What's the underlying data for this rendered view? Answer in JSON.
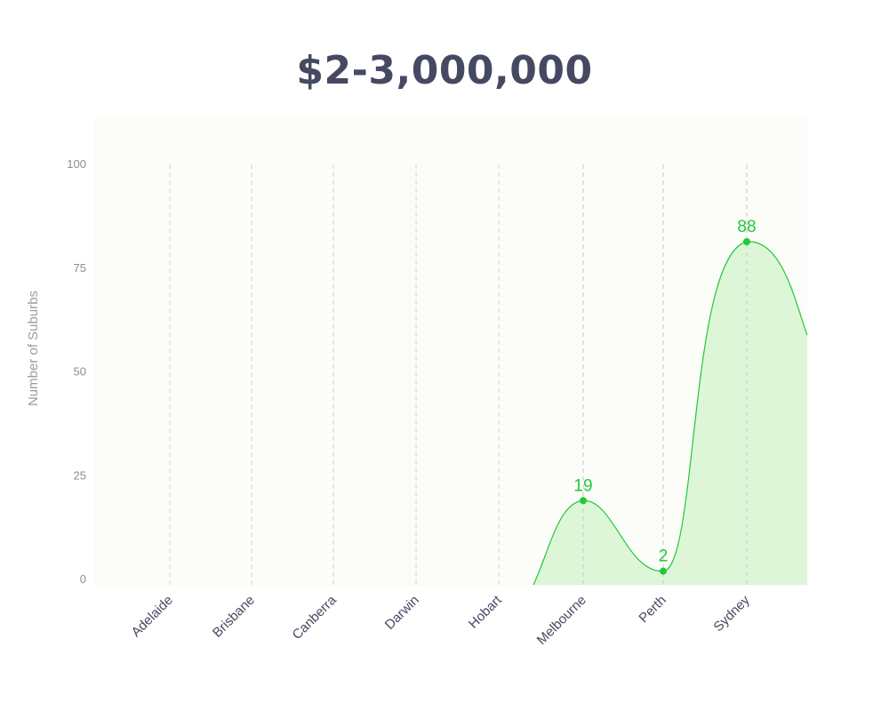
{
  "title": "$2-3,000,000",
  "colors": {
    "accent": "#22c93a",
    "fill": "#dcf5d6",
    "card": "#fcfcf8",
    "title": "#454962"
  },
  "chart_data": {
    "type": "area",
    "title": "$2-3,000,000",
    "xlabel": "",
    "ylabel": "Number of Suburbs",
    "categories": [
      "Adelaide",
      "Brisbane",
      "Canberra",
      "Darwin",
      "Hobart",
      "Melbourne",
      "Perth",
      "Sydney"
    ],
    "series": [
      {
        "values": [
          null,
          null,
          null,
          null,
          null,
          19,
          2,
          88
        ],
        "labels": [
          "",
          "",
          "",
          "",
          "",
          "19",
          "2",
          "88"
        ]
      }
    ],
    "ylim": [
      0,
      100
    ],
    "yticks": [
      0,
      25,
      50,
      75,
      100
    ],
    "grid": "vertical dashed",
    "legend": "none"
  }
}
